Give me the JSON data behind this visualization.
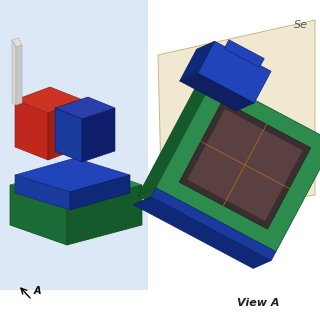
{
  "bg_color": "#ffffff",
  "left_bg_color": "#dce8f5",
  "green_dark": "#1a6b35",
  "green_mid": "#2d8b4e",
  "green_light": "#3aaa60",
  "green_side": "#155a2a",
  "blue_top": "#2244bb",
  "blue_front": "#1a3a9c",
  "blue_side": "#102878",
  "red_top": "#cc3322",
  "red_front": "#c0281e",
  "red_side": "#a02016",
  "dark_screen": "#3a2e2e",
  "dark_screen2": "#5a4040",
  "rod_color": "#d8d8d8",
  "rod_edge": "#aaaaaa",
  "section_fill": "#f0e8d0",
  "section_edge": "#c8b888",
  "text_color": "#222222",
  "arrow_color": "#000000",
  "label_view": "View A",
  "label_section": "Se",
  "label_arrow": "A"
}
